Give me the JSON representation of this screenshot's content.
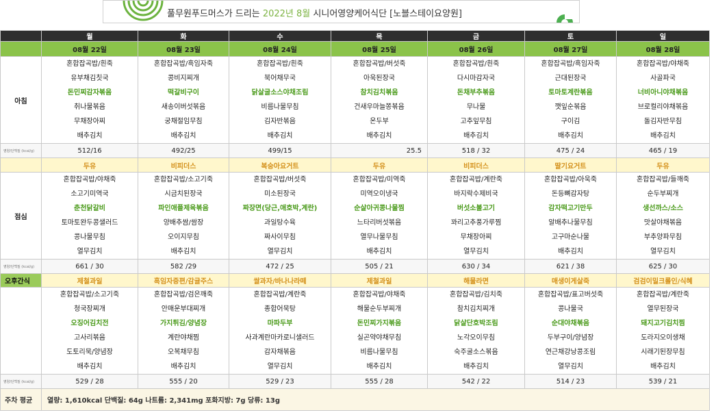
{
  "header": {
    "title_prefix": "풀무원푸드머스가 드리는",
    "title_highlight": "2022년 8월",
    "title_suffix": "시니어영양케어식단 [노블스테이요양원]"
  },
  "days": [
    "월",
    "화",
    "수",
    "목",
    "금",
    "토",
    "일"
  ],
  "dates": [
    "08월 22일",
    "08월 23일",
    "08월 24일",
    "08월 25일",
    "08월 26일",
    "08월 27일",
    "08월 28일"
  ],
  "kcal_label": "영양/단백질 (kcal/g)",
  "breakfast": {
    "label": "아침",
    "days": [
      [
        "혼합잡곡밥/흰죽",
        "유부채김칫국",
        "돈민찌감자볶음",
        "취나물볶음",
        "무채장아찌",
        "배추김치"
      ],
      [
        "혼합잡곡밥/흑임자죽",
        "콩비지찌개",
        "떡갈비구이",
        "새송이버섯볶음",
        "궁채절임무침",
        "배추김치"
      ],
      [
        "혼합잡곡밥/흰죽",
        "북어채무국",
        "닭살굴소스야채조림",
        "비름나물무침",
        "김자반볶음",
        "배추김치"
      ],
      [
        "혼합잡곡밥/버섯죽",
        "아욱된장국",
        "참치김치볶음",
        "건새우마늘쫑볶음",
        "온두부",
        "배추김치"
      ],
      [
        "혼합잡곡밥/흰죽",
        "다시마감자국",
        "돈채부추볶음",
        "무나물",
        "고추잎무침",
        "배추김치"
      ],
      [
        "혼합잡곡밥/흑임자죽",
        "근대된장국",
        "토마토계란볶음",
        "깻잎순볶음",
        "구이김",
        "배추김치"
      ],
      [
        "혼합잡곡밥/야채죽",
        "사골파국",
        "너비아니야채볶음",
        "브로컬리야채볶음",
        "돌김자반무침",
        "배추김치"
      ]
    ],
    "highlight_index": 2,
    "kcal": [
      "512/16",
      "492/25",
      "499/15",
      "25.5",
      "518 / 32",
      "475 / 24",
      "465 / 19"
    ]
  },
  "morning_snack": [
    "두유",
    "비피더스",
    "복숭아요거트",
    "두유",
    "비피더스",
    "딸기요거트",
    "두유"
  ],
  "lunch": {
    "label": "점심",
    "days": [
      [
        "혼합잡곡밥/야채죽",
        "소고기미역국",
        "춘천닭갈비",
        "토마토완두콩샐러드",
        "콩나물무침",
        "열무김치"
      ],
      [
        "혼합잡곡밥/소고기죽",
        "시금치된장국",
        "파인애플제육볶음",
        "양배추쌈/쌈장",
        "오이지무침",
        "배추김치"
      ],
      [
        "혼합잡곡밥/버섯죽",
        "미소된장국",
        "짜장면(당근,애호박,계란)",
        "과일탕수육",
        "짜사이무침",
        "열무김치"
      ],
      [
        "혼합잡곡밥/미역죽",
        "미역오이냉국",
        "순살아귀콩나물찜",
        "느타리버섯볶음",
        "열무나물무침",
        "배추김치"
      ],
      [
        "혼합잡곡밥/계란죽",
        "바지락수제비국",
        "버섯소불고기",
        "꽈리고추풍가루찜",
        "무채장아찌",
        "열무김치"
      ],
      [
        "혼합잡곡밥/아욱죽",
        "돈등뼈감자탕",
        "감자떡고기만두",
        "알배추나물무침",
        "고구마순나물",
        "배추김치"
      ],
      [
        "혼합잡곡밥/들깨죽",
        "순두부찌개",
        "생선까스/소스",
        "맛살야채볶음",
        "부추양파무침",
        "열무김치"
      ]
    ],
    "highlight_index": 2,
    "kcal": [
      "661 / 30",
      "582 /29",
      "472 / 25",
      "505 / 21",
      "630 / 34",
      "621 / 38",
      "625 / 30"
    ]
  },
  "afternoon_snack": {
    "label": "오후간식",
    "items": [
      "제철과일",
      "흑임자증편/감귤주스",
      "쌀과자/바나나라떼",
      "제철과일",
      "해물라면",
      "매생이게살죽",
      "검검이밀크롤인/식혜"
    ]
  },
  "dinner": {
    "days": [
      [
        "혼합잡곡밥/소고기죽",
        "청국장찌개",
        "오징어김치전",
        "고사리볶음",
        "도토리묵/양념장",
        "배추김치"
      ],
      [
        "혼합잡곡밥/검은깨죽",
        "안매운부대찌개",
        "가지튀김/양념장",
        "계란야채찜",
        "오복채무침",
        "배추김치"
      ],
      [
        "혼합잡곡밥/계란죽",
        "종합어묵탕",
        "마파두부",
        "사과계란마카로니샐러드",
        "감자채볶음",
        "열무김치"
      ],
      [
        "혼합잡곡밥/야채죽",
        "해물순두부찌개",
        "돈민찌가지볶음",
        "실곤약야채무침",
        "비름나물무침",
        "배추김치"
      ],
      [
        "혼합잡곡밥/김치죽",
        "참치김치찌개",
        "닭살단호박조림",
        "노각오이무침",
        "숙주굴소스볶음",
        "배추김치"
      ],
      [
        "혼합잡곡밥/표고버섯죽",
        "콩나물국",
        "순대야채볶음",
        "두부구이/양념장",
        "연근채강낭콩조림",
        "열무김치"
      ],
      [
        "혼합잡곡밥/계란죽",
        "열무된장국",
        "돼지고기김치찜",
        "도라지오이생채",
        "시래기된장무침",
        "배추김치"
      ]
    ],
    "highlight_index": 2,
    "kcal": [
      "529 / 28",
      "555 / 20",
      "529 / 23",
      "555 / 28",
      "542 / 22",
      "514 / 23",
      "539 / 21"
    ]
  },
  "weekly_average": {
    "label": "주차 평균",
    "value": "열량: 1,610kcal 단백질: 64g 나트륨: 2,341mg 포화지방: 7g 당류: 13g"
  }
}
